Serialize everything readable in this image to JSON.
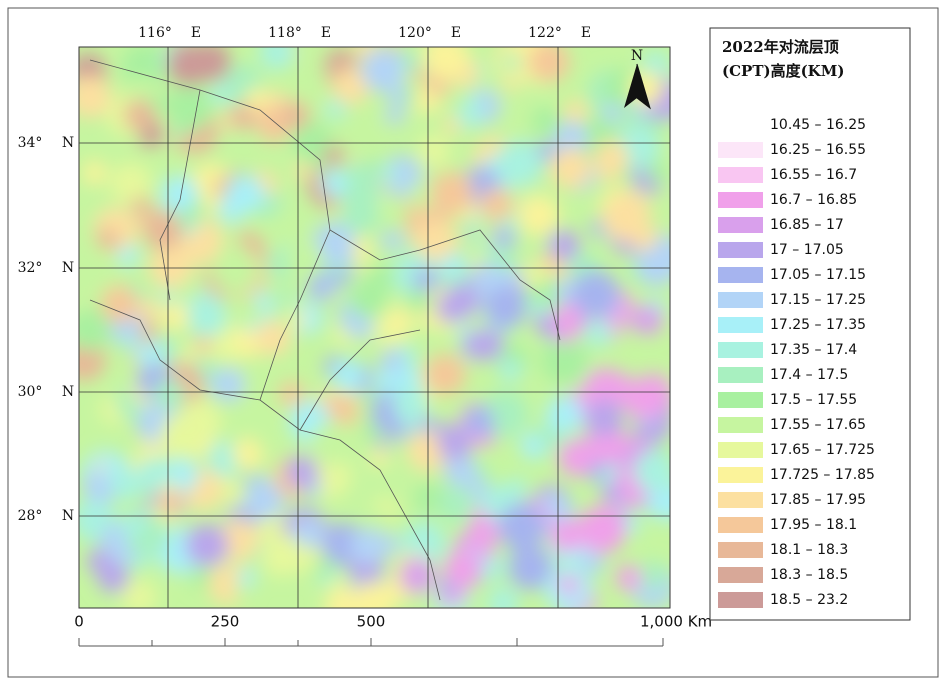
{
  "map": {
    "lon_labels": [
      {
        "deg": "116°",
        "hemi": "E"
      },
      {
        "deg": "118°",
        "hemi": "E"
      },
      {
        "deg": "120°",
        "hemi": "E"
      },
      {
        "deg": "122°",
        "hemi": "E"
      }
    ],
    "lat_labels": [
      {
        "deg": "34°",
        "hemi": "N"
      },
      {
        "deg": "32°",
        "hemi": "N"
      },
      {
        "deg": "30°",
        "hemi": "N"
      },
      {
        "deg": "28°",
        "hemi": "N"
      }
    ],
    "north": "N",
    "scale_labels": [
      "0",
      "250",
      "500",
      "1,000 Km"
    ]
  },
  "legend": {
    "title": [
      "2022年对流层顶",
      "(CPT)高度(KM)"
    ],
    "items": [
      {
        "label": "10.45 – 16.25",
        "color": "#ffffff"
      },
      {
        "label": "16.25 – 16.55",
        "color": "#fce6f8"
      },
      {
        "label": "16.55 – 16.7",
        "color": "#f9c6f2"
      },
      {
        "label": "16.7 – 16.85",
        "color": "#f0a0ea"
      },
      {
        "label": "16.85 – 17",
        "color": "#d9a0ec"
      },
      {
        "label": "17 – 17.05",
        "color": "#b9a6ec"
      },
      {
        "label": "17.05 – 17.15",
        "color": "#a6b4ef"
      },
      {
        "label": "17.15 – 17.25",
        "color": "#b2d4f7"
      },
      {
        "label": "17.25 – 17.35",
        "color": "#a8f0f8"
      },
      {
        "label": "17.35 – 17.4",
        "color": "#a8f2e0"
      },
      {
        "label": "17.4 – 17.5",
        "color": "#a8f0c0"
      },
      {
        "label": "17.5 – 17.55",
        "color": "#a8f0a0"
      },
      {
        "label": "17.55 – 17.65",
        "color": "#c6f5a0"
      },
      {
        "label": "17.65 – 17.725",
        "color": "#e6f89c"
      },
      {
        "label": "17.725 – 17.85",
        "color": "#fbf39a"
      },
      {
        "label": "17.85 – 17.95",
        "color": "#fce0a0"
      },
      {
        "label": "17.95 – 18.1",
        "color": "#f5c89a"
      },
      {
        "label": "18.1 – 18.3",
        "color": "#e8b898"
      },
      {
        "label": "18.3 – 18.5",
        "color": "#d8a898"
      },
      {
        "label": "18.5 – 23.2",
        "color": "#cc9a98"
      }
    ]
  }
}
